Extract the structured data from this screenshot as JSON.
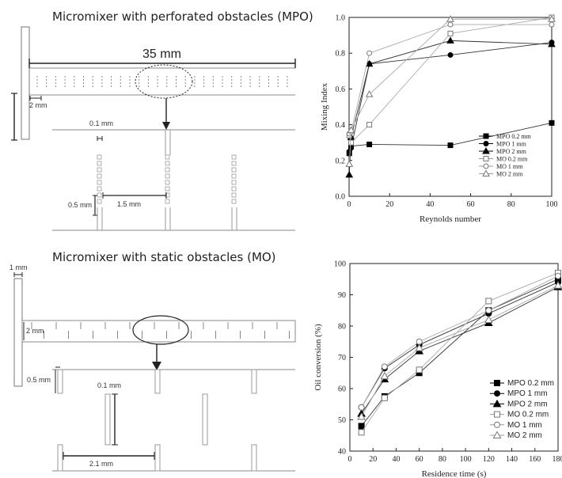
{
  "diagram": {
    "mpo": {
      "title": "Micromixer with perforated obstacles (MPO)",
      "length_label": "35 mm",
      "inlet_label": "2 mm",
      "hole_label": "0.1 mm",
      "pitch_label": "0.5 mm",
      "spacing_label": "1.5 mm"
    },
    "mo": {
      "title": "Micromixer with static obstacles (MO)",
      "inlet_label": "1 mm",
      "channel_label": "2 mm",
      "gap_label": "0.5 mm",
      "width_label": "0.1 mm",
      "spacing_label": "2.1 mm"
    }
  },
  "chart_data": [
    {
      "type": "line",
      "xlabel": "Reynolds number",
      "ylabel": "Mixing Index",
      "xlim": [
        0,
        100
      ],
      "ylim": [
        0,
        1.0
      ],
      "xticks": [
        "0",
        "20",
        "40",
        "60",
        "80",
        "100"
      ],
      "yticks": [
        "0.0",
        "0.2",
        "0.4",
        "0.6",
        "0.8",
        "1.0"
      ],
      "x": [
        0.1,
        1,
        10,
        50,
        100
      ],
      "legend_position": "bottom-right",
      "series": [
        {
          "name": "MPO 0.2 mm",
          "marker": "square-filled",
          "values": [
            0.24,
            0.28,
            0.29,
            0.285,
            0.41
          ]
        },
        {
          "name": "MPO 1 mm",
          "marker": "circle-filled",
          "values": [
            0.25,
            0.27,
            0.74,
            0.79,
            0.86
          ]
        },
        {
          "name": "MPO 2 mm",
          "marker": "triangle-filled",
          "values": [
            0.12,
            0.33,
            0.74,
            0.87,
            0.85
          ]
        },
        {
          "name": "MO 0.2 mm",
          "marker": "square-open",
          "values": [
            0.34,
            0.3,
            0.4,
            0.91,
            1.0
          ]
        },
        {
          "name": "MO 1 mm",
          "marker": "circle-open",
          "values": [
            0.35,
            0.36,
            0.8,
            0.96,
            0.96
          ]
        },
        {
          "name": "MO 2 mm",
          "marker": "triangle-open",
          "values": [
            0.18,
            0.37,
            0.57,
            0.99,
            0.99
          ]
        }
      ]
    },
    {
      "type": "line",
      "xlabel": "Residence time (s)",
      "ylabel": "Oil conversion (%)",
      "xlim": [
        0,
        180
      ],
      "ylim": [
        40,
        100
      ],
      "xticks": [
        "0",
        "20",
        "40",
        "60",
        "80",
        "100",
        "120",
        "140",
        "160",
        "180"
      ],
      "yticks": [
        "40",
        "50",
        "60",
        "70",
        "80",
        "90",
        "100"
      ],
      "x": [
        10,
        30,
        60,
        120,
        180
      ],
      "legend_position": "bottom-right",
      "series": [
        {
          "name": "MPO 0.2 mm",
          "marker": "square-filled",
          "values": [
            48,
            57.5,
            65,
            85,
            95
          ]
        },
        {
          "name": "MPO 1 mm",
          "marker": "circle-filled",
          "values": [
            54,
            66.5,
            74,
            84,
            94
          ]
        },
        {
          "name": "MPO 2 mm",
          "marker": "triangle-filled",
          "values": [
            52,
            63,
            72,
            81,
            92.5
          ]
        },
        {
          "name": "MO 0.2 mm",
          "marker": "square-open",
          "values": [
            46,
            57,
            66,
            88,
            97
          ]
        },
        {
          "name": "MO 1 mm",
          "marker": "circle-open",
          "values": [
            54,
            67,
            75,
            85,
            96
          ]
        },
        {
          "name": "MO 2 mm",
          "marker": "triangle-open",
          "values": [
            51,
            64,
            73,
            82,
            93
          ]
        }
      ]
    }
  ]
}
